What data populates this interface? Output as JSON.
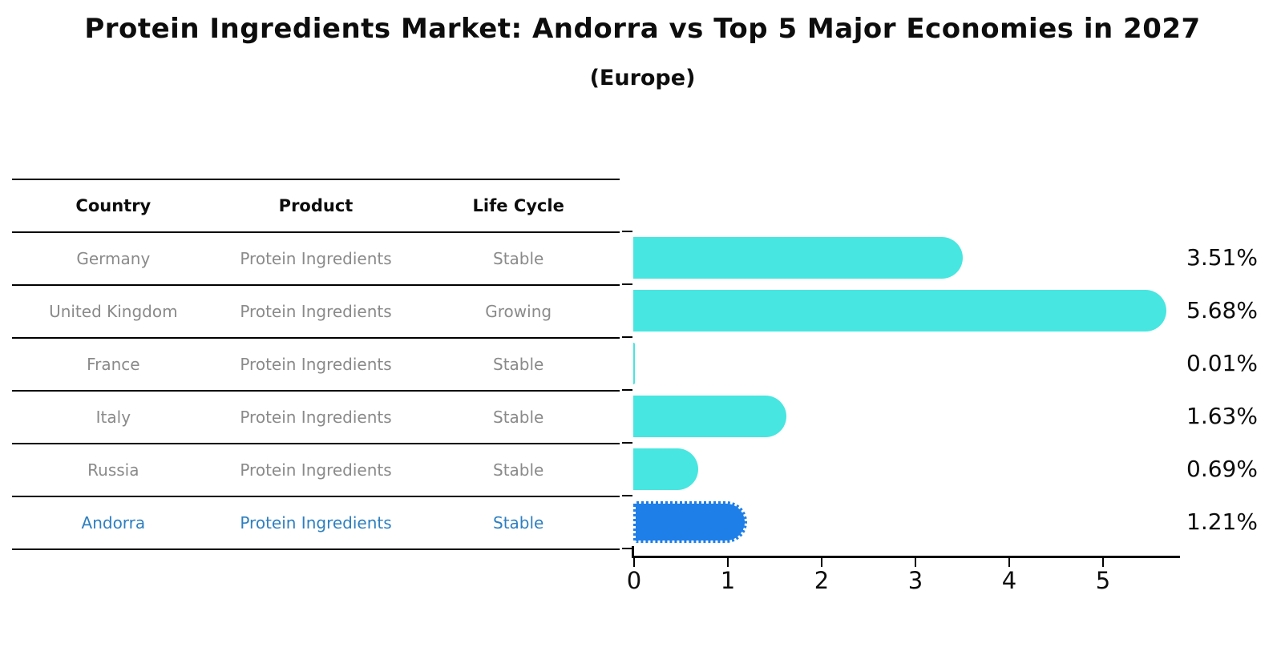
{
  "title": "Protein Ingredients Market: Andorra vs Top 5 Major Economies in 2027",
  "subtitle": "(Europe)",
  "table": {
    "headers": {
      "country": "Country",
      "product": "Product",
      "life_cycle": "Life Cycle"
    },
    "rows": [
      {
        "country": "Germany",
        "product": "Protein Ingredients",
        "life_cycle": "Stable",
        "highlight": false
      },
      {
        "country": "United Kingdom",
        "product": "Protein Ingredients",
        "life_cycle": "Growing",
        "highlight": false
      },
      {
        "country": "France",
        "product": "Protein Ingredients",
        "life_cycle": "Stable",
        "highlight": false
      },
      {
        "country": "Italy",
        "product": "Protein Ingredients",
        "life_cycle": "Stable",
        "highlight": false
      },
      {
        "country": "Russia",
        "product": "Protein Ingredients",
        "life_cycle": "Stable",
        "highlight": false
      },
      {
        "country": "Andorra",
        "product": "Protein Ingredients",
        "life_cycle": "Stable",
        "highlight": true
      }
    ]
  },
  "chart_data": {
    "type": "bar",
    "orientation": "horizontal",
    "categories": [
      "Germany",
      "United Kingdom",
      "France",
      "Italy",
      "Russia",
      "Andorra"
    ],
    "values": [
      3.51,
      5.68,
      0.01,
      1.63,
      0.69,
      1.21
    ],
    "value_labels": [
      "3.51%",
      "5.68%",
      "0.01%",
      "1.63%",
      "0.69%",
      "1.21%"
    ],
    "xticks": [
      "0",
      "1",
      "2",
      "3",
      "4",
      "5"
    ],
    "xlim": [
      0,
      5.85
    ],
    "grid": false,
    "legend": "none",
    "bar_color": "#47e6e0",
    "highlight_color": "#1e7fe8",
    "highlight_index": 5,
    "highlight_style": "dotted-edge"
  },
  "colors": {
    "background": "#ffffff",
    "text_primary": "#0d0d0d",
    "text_muted": "#8a8a8a",
    "text_highlight": "#2e7fc0",
    "line": "#000000"
  }
}
